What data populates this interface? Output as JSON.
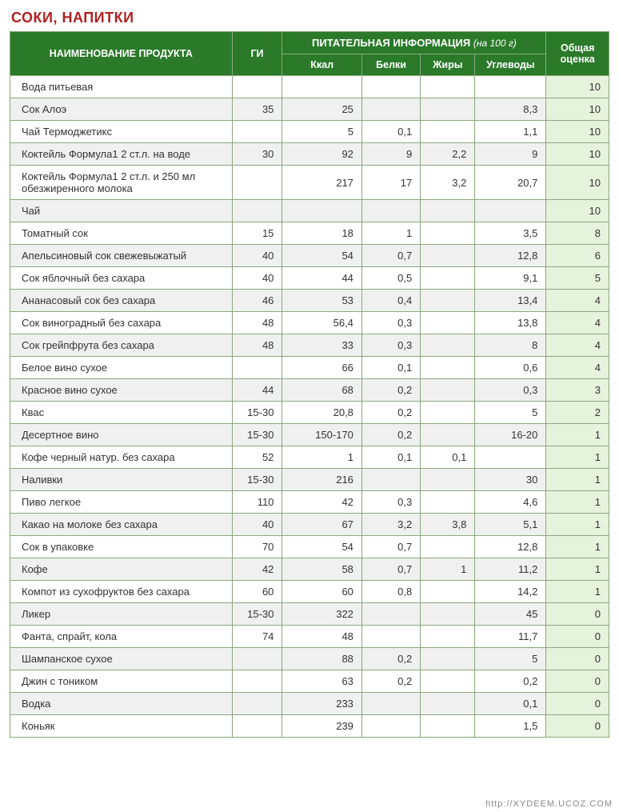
{
  "title": "СОКИ, НАПИТКИ",
  "colors": {
    "title": "#b02020",
    "header_bg": "#2a7a2a",
    "header_fg": "#ffffff",
    "border": "#8aa87a",
    "row_even": "#ffffff",
    "row_odd": "#f0f0f0",
    "score_bg": "#e5f2dc"
  },
  "header": {
    "product": "НАИМЕНОВАНИЕ ПРОДУКТА",
    "gi": "ГИ",
    "nutrition_group": "ПИТАТЕЛЬНАЯ ИНФОРМАЦИЯ",
    "nutrition_per": "(на 100 г)",
    "kcal": "Ккал",
    "protein": "Белки",
    "fat": "Жиры",
    "carbs": "Углеводы",
    "score": "Общая оценка"
  },
  "rows": [
    {
      "name": "Вода питьевая",
      "gi": "",
      "kcal": "",
      "protein": "",
      "fat": "",
      "carbs": "",
      "score": "10"
    },
    {
      "name": "Сок Алоэ",
      "gi": "35",
      "kcal": "25",
      "protein": "",
      "fat": "",
      "carbs": "8,3",
      "score": "10"
    },
    {
      "name": "Чай Термоджетикс",
      "gi": "",
      "kcal": "5",
      "protein": "0,1",
      "fat": "",
      "carbs": "1,1",
      "score": "10"
    },
    {
      "name": "Коктейль Формула1 2 ст.л. на воде",
      "gi": "30",
      "kcal": "92",
      "protein": "9",
      "fat": "2,2",
      "carbs": "9",
      "score": "10"
    },
    {
      "name": "Коктейль Формула1 2 ст.л. и 250 мл обезжиренного молока",
      "gi": "",
      "kcal": "217",
      "protein": "17",
      "fat": "3,2",
      "carbs": "20,7",
      "score": "10"
    },
    {
      "name": "Чай",
      "gi": "",
      "kcal": "",
      "protein": "",
      "fat": "",
      "carbs": "",
      "score": "10"
    },
    {
      "name": "Томатный сок",
      "gi": "15",
      "kcal": "18",
      "protein": "1",
      "fat": "",
      "carbs": "3,5",
      "score": "8"
    },
    {
      "name": "Апельсиновый сок свежевыжатый",
      "gi": "40",
      "kcal": "54",
      "protein": "0,7",
      "fat": "",
      "carbs": "12,8",
      "score": "6"
    },
    {
      "name": "Сок яблочный без сахара",
      "gi": "40",
      "kcal": "44",
      "protein": "0,5",
      "fat": "",
      "carbs": "9,1",
      "score": "5"
    },
    {
      "name": "Ананасовый сок без сахара",
      "gi": "46",
      "kcal": "53",
      "protein": "0,4",
      "fat": "",
      "carbs": "13,4",
      "score": "4"
    },
    {
      "name": "Сок виноградный без сахара",
      "gi": "48",
      "kcal": "56,4",
      "protein": "0,3",
      "fat": "",
      "carbs": "13,8",
      "score": "4"
    },
    {
      "name": "Сок грейпфрута без сахара",
      "gi": "48",
      "kcal": "33",
      "protein": "0,3",
      "fat": "",
      "carbs": "8",
      "score": "4"
    },
    {
      "name": "Белое вино сухое",
      "gi": "",
      "kcal": "66",
      "protein": "0,1",
      "fat": "",
      "carbs": "0,6",
      "score": "4"
    },
    {
      "name": "Красное вино сухое",
      "gi": "44",
      "kcal": "68",
      "protein": "0,2",
      "fat": "",
      "carbs": "0,3",
      "score": "3"
    },
    {
      "name": "Квас",
      "gi": "15-30",
      "kcal": "20,8",
      "protein": "0,2",
      "fat": "",
      "carbs": "5",
      "score": "2"
    },
    {
      "name": "Десертное вино",
      "gi": "15-30",
      "kcal": "150-170",
      "protein": "0,2",
      "fat": "",
      "carbs": "16-20",
      "score": "1"
    },
    {
      "name": "Кофе черный натур. без сахара",
      "gi": "52",
      "kcal": "1",
      "protein": "0,1",
      "fat": "0,1",
      "carbs": "",
      "score": "1"
    },
    {
      "name": "Наливки",
      "gi": "15-30",
      "kcal": "216",
      "protein": "",
      "fat": "",
      "carbs": "30",
      "score": "1"
    },
    {
      "name": "Пиво легкое",
      "gi": "110",
      "kcal": "42",
      "protein": "0,3",
      "fat": "",
      "carbs": "4,6",
      "score": "1"
    },
    {
      "name": "Какао на молоке без сахара",
      "gi": "40",
      "kcal": "67",
      "protein": "3,2",
      "fat": "3,8",
      "carbs": "5,1",
      "score": "1"
    },
    {
      "name": "Сок в упаковке",
      "gi": "70",
      "kcal": "54",
      "protein": "0,7",
      "fat": "",
      "carbs": "12,8",
      "score": "1"
    },
    {
      "name": "Кофе",
      "gi": "42",
      "kcal": "58",
      "protein": "0,7",
      "fat": "1",
      "carbs": "11,2",
      "score": "1"
    },
    {
      "name": "Компот из сухофруктов без сахара",
      "gi": "60",
      "kcal": "60",
      "protein": "0,8",
      "fat": "",
      "carbs": "14,2",
      "score": "1"
    },
    {
      "name": "Ликер",
      "gi": "15-30",
      "kcal": "322",
      "protein": "",
      "fat": "",
      "carbs": "45",
      "score": "0"
    },
    {
      "name": "Фанта, спрайт, кола",
      "gi": "74",
      "kcal": "48",
      "protein": "",
      "fat": "",
      "carbs": "11,7",
      "score": "0"
    },
    {
      "name": "Шампанское сухое",
      "gi": "",
      "kcal": "88",
      "protein": "0,2",
      "fat": "",
      "carbs": "5",
      "score": "0"
    },
    {
      "name": "Джин с тоником",
      "gi": "",
      "kcal": "63",
      "protein": "0,2",
      "fat": "",
      "carbs": "0,2",
      "score": "0"
    },
    {
      "name": "Водка",
      "gi": "",
      "kcal": "233",
      "protein": "",
      "fat": "",
      "carbs": "0,1",
      "score": "0"
    },
    {
      "name": "Коньяк",
      "gi": "",
      "kcal": "239",
      "protein": "",
      "fat": "",
      "carbs": "1,5",
      "score": "0"
    }
  ],
  "watermark": "http://XYDEEM.UCOZ.COM"
}
